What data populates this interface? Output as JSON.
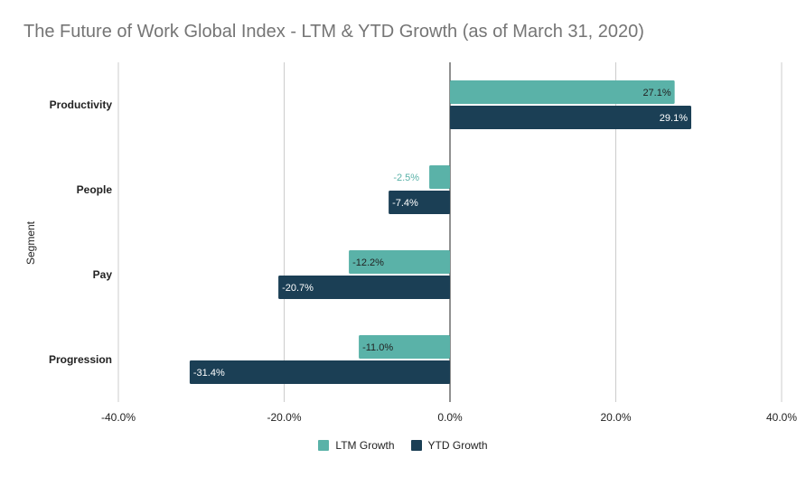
{
  "chart_data": {
    "type": "bar",
    "orientation": "horizontal",
    "title": "The Future of Work Global Index - LTM  & YTD Growth (as of March 31, 2020)",
    "ylabel": "Segment",
    "xlabel": "",
    "categories": [
      "Productivity",
      "People",
      "Pay",
      "Progression"
    ],
    "series": [
      {
        "name": "LTM Growth",
        "color": "#5ab2a8",
        "values": [
          27.1,
          -2.5,
          -12.2,
          -11.0
        ],
        "labels": [
          "27.1%",
          "-2.5%",
          "-12.2%",
          "-11.0%"
        ]
      },
      {
        "name": "YTD Growth",
        "color": "#1b3f55",
        "values": [
          29.1,
          -7.4,
          -20.7,
          -31.4
        ],
        "labels": [
          "29.1%",
          "-7.4%",
          "-20.7%",
          "-31.4%"
        ]
      }
    ],
    "xlim": [
      -40,
      40
    ],
    "xticks": [
      -40,
      -20,
      0,
      20,
      40
    ],
    "xtick_labels": [
      "-40.0%",
      "-20.0%",
      "0.0%",
      "20.0%",
      "40.0%"
    ],
    "grid": true,
    "legend_position": "bottom"
  }
}
